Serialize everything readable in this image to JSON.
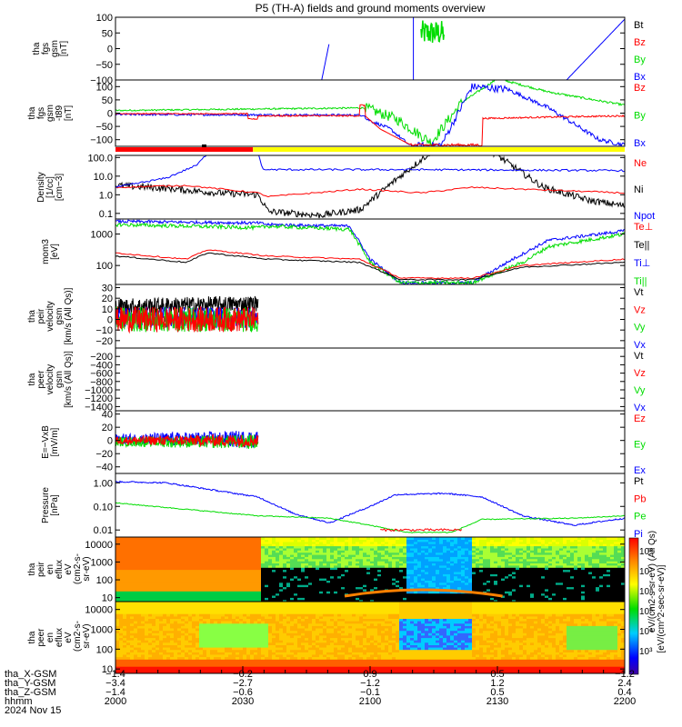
{
  "title": "P5 (TH-A) fields and ground moments overview",
  "colors": {
    "black": "#000000",
    "red": "#ff0000",
    "green": "#00dd00",
    "blue": "#0000ff",
    "yellow": "#ffff00"
  },
  "chart_data": [
    {
      "id": "fgs",
      "type": "line",
      "ylabel": [
        "tha",
        "fgs",
        "gsm",
        "[nT]"
      ],
      "ylim": [
        -100,
        100
      ],
      "yticks": [
        "100",
        "50",
        "0",
        "−50",
        "−100"
      ],
      "ytick_values": [
        100,
        50,
        0,
        -50,
        -100
      ],
      "legend": [
        {
          "name": "Bt",
          "color": "black"
        },
        {
          "name": "Bz",
          "color": "red"
        },
        {
          "name": "By",
          "color": "green"
        },
        {
          "name": "Bx",
          "color": "blue"
        }
      ]
    },
    {
      "id": "fgs_t89",
      "type": "line",
      "ylabel": [
        "tha",
        "fgs",
        "gsm",
        "-t89",
        "[nT]"
      ],
      "ylim": [
        -125,
        125
      ],
      "yticks": [
        "100",
        "50",
        "0",
        "−50",
        "−100"
      ],
      "ytick_values": [
        100,
        50,
        0,
        -50,
        -100
      ],
      "legend": [
        {
          "name": "Bz",
          "color": "red"
        },
        {
          "name": "By",
          "color": "green"
        },
        {
          "name": "Bx",
          "color": "blue"
        }
      ]
    },
    {
      "id": "density",
      "type": "line",
      "log": true,
      "ylabel": [
        "Density",
        "[1/cc]",
        "[cm−3]"
      ],
      "ylim": [
        0.05,
        130
      ],
      "yticks": [
        "100.0",
        "10.0",
        "1.0",
        "0.1"
      ],
      "ytick_values": [
        100,
        10,
        1,
        0.1
      ],
      "legend": [
        {
          "name": "Ne",
          "color": "red"
        },
        {
          "name": "Ni",
          "color": "black"
        },
        {
          "name": "Npot",
          "color": "blue"
        }
      ]
    },
    {
      "id": "temp",
      "type": "line",
      "log": true,
      "ylabel": [
        "mom3",
        "[eV]"
      ],
      "ylim": [
        25,
        3000
      ],
      "yticks": [
        "1000",
        "100"
      ],
      "ytick_values": [
        1000,
        100
      ],
      "legend": [
        {
          "name": "Te⊥",
          "color": "red"
        },
        {
          "name": "Te||",
          "color": "black"
        },
        {
          "name": "Ti⊥",
          "color": "blue"
        },
        {
          "name": "Ti||",
          "color": "green"
        }
      ]
    },
    {
      "id": "peir_v",
      "type": "line",
      "ylabel": [
        "tha",
        "peir",
        "velocity",
        "gsm",
        "[km/s (All Qs)]"
      ],
      "ylim": [
        -27,
        33
      ],
      "yticks": [
        "30",
        "20",
        "10",
        "0",
        "−10",
        "−20"
      ],
      "ytick_values": [
        30,
        20,
        10,
        0,
        -10,
        -20
      ],
      "legend": [
        {
          "name": "Vt",
          "color": "black"
        },
        {
          "name": "Vz",
          "color": "red"
        },
        {
          "name": "Vy",
          "color": "green"
        },
        {
          "name": "Vx",
          "color": "blue"
        }
      ]
    },
    {
      "id": "peer_v",
      "type": "line",
      "ylabel": [
        "tha",
        "peer",
        "velocity",
        "gsm",
        "[km/s (All Qs)]"
      ],
      "ylim": [
        -1500,
        0
      ],
      "yticks": [
        "−200",
        "−400",
        "−600",
        "−800",
        "−1000",
        "−1200",
        "−1400"
      ],
      "ytick_values": [
        -200,
        -400,
        -600,
        -800,
        -1000,
        -1200,
        -1400
      ],
      "legend": [
        {
          "name": "Vt",
          "color": "black"
        },
        {
          "name": "Vz",
          "color": "red"
        },
        {
          "name": "Vy",
          "color": "green"
        },
        {
          "name": "Vx",
          "color": "blue"
        }
      ]
    },
    {
      "id": "efield",
      "type": "line",
      "ylabel": [
        "E=−VxB",
        "[mV/m]"
      ],
      "ylim": [
        -50,
        45
      ],
      "yticks": [
        "40",
        "20",
        "0",
        "−20",
        "−40"
      ],
      "ytick_values": [
        40,
        20,
        0,
        -20,
        -40
      ],
      "legend": [
        {
          "name": "Ez",
          "color": "red"
        },
        {
          "name": "Ey",
          "color": "green"
        },
        {
          "name": "Ex",
          "color": "blue"
        }
      ]
    },
    {
      "id": "pressure",
      "type": "line",
      "log": true,
      "ylabel": [
        "Pressure",
        "[nPa]"
      ],
      "ylim": [
        0.005,
        2.5
      ],
      "yticks": [
        "1.00",
        "0.10",
        "0.01"
      ],
      "ytick_values": [
        1,
        0.1,
        0.01
      ],
      "legend": [
        {
          "name": "Pt",
          "color": "black"
        },
        {
          "name": "Pb",
          "color": "red"
        },
        {
          "name": "Pe",
          "color": "green"
        },
        {
          "name": "Pi",
          "color": "blue"
        }
      ]
    },
    {
      "id": "peir_spec",
      "type": "heatmap",
      "log": true,
      "ylabel": [
        "tha",
        "peir",
        "en",
        "eflux",
        "eV"
      ],
      "ylim": [
        6,
        25000
      ],
      "yticks": [
        "10000",
        "1000",
        "100",
        "10"
      ],
      "ytick_values": [
        10000,
        1000,
        100,
        10
      ]
    },
    {
      "id": "peer_spec",
      "type": "heatmap",
      "log": true,
      "ylabel": [
        "tha",
        "peer",
        "en",
        "eflux",
        "eV"
      ],
      "ylim": [
        6,
        25000
      ],
      "yticks": [
        "10000",
        "1000",
        "100",
        "10"
      ],
      "ytick_values": [
        10000,
        1000,
        100,
        10
      ]
    }
  ],
  "colorbar": {
    "label": "[eV/(cm^2-sec-sr-eV)]",
    "label_overlay": "eV/(cm2-s-sr-eV) (All Qs)",
    "ticks": [
      "10⁸",
      "10⁷",
      "10⁶",
      "10⁵",
      "10⁴",
      "10³"
    ]
  },
  "spectro_units": [
    "(cm2-s-",
    "sr-eV)"
  ],
  "status_bar_split": 0.27,
  "x_axis": {
    "columns": [
      {
        "hhmm": "2000",
        "x_gsm": "−1.4",
        "y_gsm": "−3.4",
        "z_gsm": "−1.4",
        "frac": 0.0
      },
      {
        "hhmm": "2030",
        "x_gsm": "−0.2",
        "y_gsm": "−2.7",
        "z_gsm": "−0.6",
        "frac": 0.25
      },
      {
        "hhmm": "2100",
        "x_gsm": "0.9",
        "y_gsm": "−1.2",
        "z_gsm": "−0.1",
        "frac": 0.5
      },
      {
        "hhmm": "2130",
        "x_gsm": "0.5",
        "y_gsm": "1.2",
        "z_gsm": "0.5",
        "frac": 0.75
      },
      {
        "hhmm": "2200",
        "x_gsm": "−1.2",
        "y_gsm": "2.4",
        "z_gsm": "0.4",
        "frac": 1.0
      }
    ],
    "row_labels": [
      "tha_X-GSM",
      "tha_Y-GSM",
      "tha_Z-GSM",
      "hhmm",
      "2024 Nov 15"
    ]
  }
}
